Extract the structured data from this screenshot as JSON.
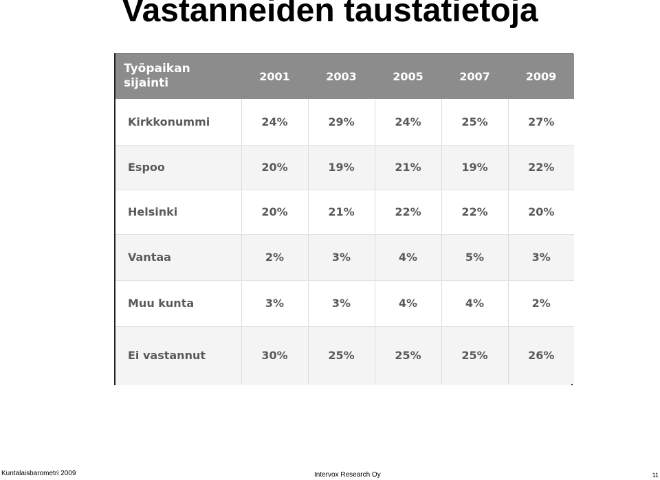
{
  "title": "Vastanneiden taustatietoja",
  "table": {
    "header_first_line1": "Työpaikan",
    "header_first_line2": "sijainti",
    "years": [
      "2001",
      "2003",
      "2005",
      "2007",
      "2009"
    ],
    "rows": [
      {
        "label": "Kirkkonummi",
        "values": [
          "24%",
          "29%",
          "24%",
          "25%",
          "27%"
        ]
      },
      {
        "label": "Espoo",
        "values": [
          "20%",
          "19%",
          "21%",
          "19%",
          "22%"
        ]
      },
      {
        "label": "Helsinki",
        "values": [
          "20%",
          "21%",
          "22%",
          "22%",
          "20%"
        ]
      },
      {
        "label": "Vantaa",
        "values": [
          "2%",
          "3%",
          "4%",
          "5%",
          "3%"
        ]
      },
      {
        "label": "Muu kunta",
        "values": [
          "3%",
          "3%",
          "4%",
          "4%",
          "2%"
        ]
      },
      {
        "label": "Ei vastannut",
        "values": [
          "30%",
          "25%",
          "25%",
          "25%",
          "26%"
        ]
      }
    ]
  },
  "footer": {
    "left": "Kuntalaisbarometri 2009",
    "center": "Intervox Research Oy",
    "page": "11"
  }
}
